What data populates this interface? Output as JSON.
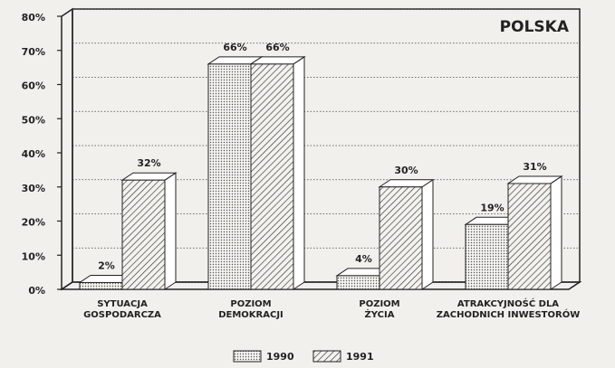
{
  "chart_data": {
    "type": "bar3d",
    "annotation": "POLSKA",
    "categories": [
      "SYTUACJA\nGOSPODARCZA",
      "POZIOM\nDEMOKRACJI",
      "POZIOM\nŻYCIA",
      "ATRAKCYJNOŚĆ DLA\nZACHODNICH INWESTORÓW"
    ],
    "series": [
      {
        "name": "1990",
        "color": "#555555",
        "pattern": "dots",
        "values": [
          2,
          66,
          4,
          19
        ],
        "value_labels": [
          "2%",
          "66%",
          "4%",
          "19%"
        ]
      },
      {
        "name": "1991",
        "color": "#333333",
        "pattern": "hatch",
        "values": [
          32,
          66,
          30,
          31
        ],
        "value_labels": [
          "32%",
          "66%",
          "30%",
          "31%"
        ]
      }
    ],
    "ylim": [
      0,
      80
    ],
    "yticks": [
      {
        "value": 0,
        "label": "0%"
      },
      {
        "value": 10,
        "label": "10%"
      },
      {
        "value": 20,
        "label": "20%"
      },
      {
        "value": 30,
        "label": "30%"
      },
      {
        "value": 40,
        "label": "40%"
      },
      {
        "value": 50,
        "label": "50%"
      },
      {
        "value": 60,
        "label": "60%"
      },
      {
        "value": 70,
        "label": "70%"
      },
      {
        "value": 80,
        "label": "80%"
      }
    ],
    "grid": true,
    "legend": "bottom"
  }
}
